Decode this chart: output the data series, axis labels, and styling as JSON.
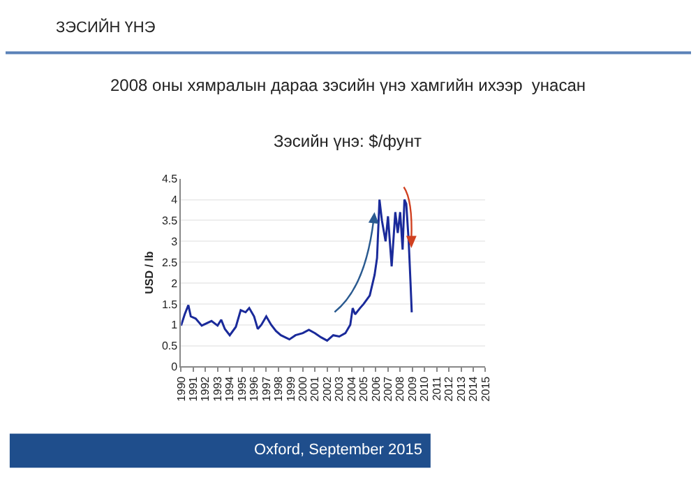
{
  "chart_data": {
    "type": "line",
    "title": "ЗЭСИЙН ҮНЭ",
    "subtitle": "2008 оны хямралын дараа зэсийн үнэ хамгийн ихээр  унасан",
    "annotations": [
      "Зэсийн үнэ: $/фунт",
      "Oxford, September 2015"
    ],
    "ylabel": "USD / lb",
    "x": [
      1990.0,
      1990.3,
      1990.6,
      1990.8,
      1991.2,
      1991.7,
      1992.5,
      1993.0,
      1993.3,
      1993.6,
      1994.0,
      1994.5,
      1994.9,
      1995.3,
      1995.6,
      1996.0,
      1996.3,
      1996.6,
      1997.0,
      1997.4,
      1997.8,
      1998.2,
      1998.9,
      1999.4,
      2000.0,
      2000.5,
      2001.0,
      2001.5,
      2002.0,
      2002.5,
      2003.0,
      2003.5,
      2003.9,
      2004.1,
      2004.3,
      2004.7,
      2005.0,
      2005.5,
      2005.9,
      2006.1,
      2006.3,
      2006.5,
      2006.8,
      2007.0,
      2007.3,
      2007.6,
      2007.8,
      2008.0,
      2008.2,
      2008.35,
      2008.5,
      2008.7,
      2008.85,
      2008.95
    ],
    "series": [
      {
        "color": "#1a2a9a",
        "values": [
          0.98,
          1.25,
          1.47,
          1.2,
          1.15,
          0.98,
          1.09,
          0.98,
          1.12,
          0.9,
          0.75,
          0.95,
          1.35,
          1.3,
          1.4,
          1.2,
          0.9,
          1.0,
          1.2,
          1.0,
          0.85,
          0.75,
          0.65,
          0.75,
          0.8,
          0.88,
          0.8,
          0.7,
          0.62,
          0.75,
          0.72,
          0.8,
          1.0,
          1.4,
          1.25,
          1.4,
          1.5,
          1.7,
          2.2,
          2.6,
          4.0,
          3.5,
          3.0,
          3.6,
          2.4,
          3.7,
          3.2,
          3.7,
          2.8,
          4.0,
          3.9,
          3.0,
          2.0,
          1.3
        ]
      }
    ],
    "xlim": [
      1990,
      2015
    ],
    "xticks": [
      1990,
      1991,
      1992,
      1993,
      1994,
      1995,
      1996,
      1997,
      1998,
      1999,
      2000,
      2001,
      2002,
      2003,
      2004,
      2005,
      2006,
      2007,
      2008,
      2009,
      2010,
      2011,
      2012,
      2013,
      2014,
      2015
    ],
    "ylim": [
      0,
      4.5
    ],
    "yticks": [
      0,
      0.5,
      1,
      1.5,
      2,
      2.5,
      3,
      3.5,
      4,
      4.5
    ],
    "grid": "y",
    "marker": "none",
    "line_style": "solid"
  }
}
